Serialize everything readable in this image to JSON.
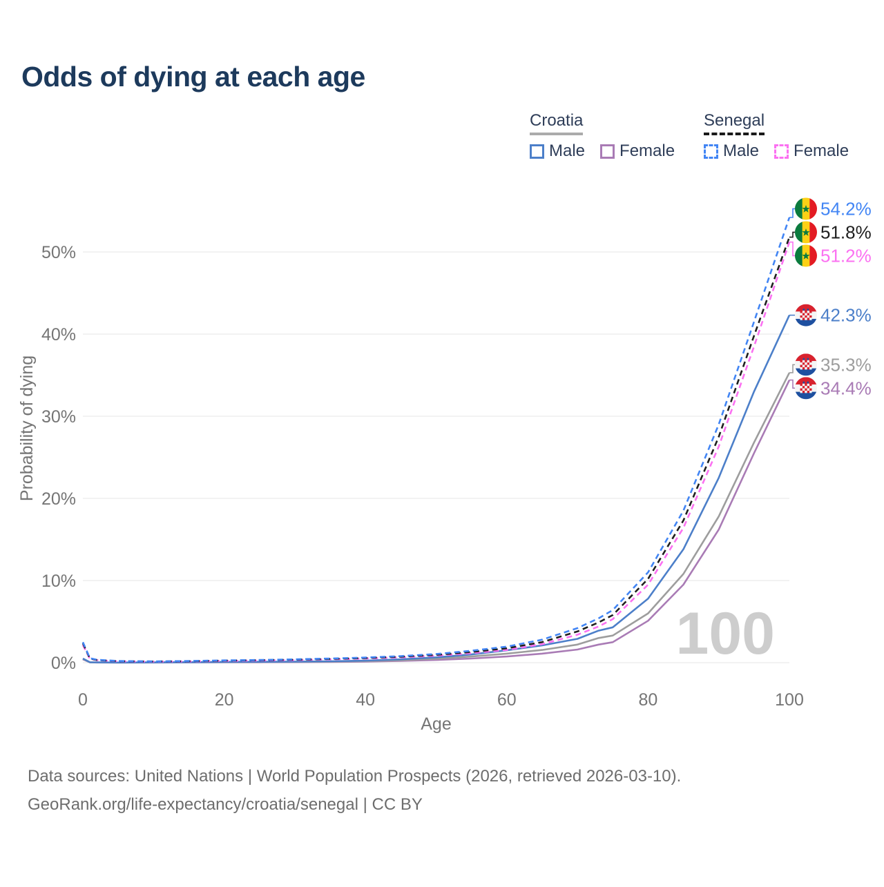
{
  "title": "Odds of dying at each age",
  "legend": {
    "groups": [
      {
        "country": "Croatia",
        "line_style": "solid",
        "underline_color": "#ababab",
        "items": [
          {
            "label": "Male",
            "color": "#4c7fc9",
            "dash": false
          },
          {
            "label": "Female",
            "color": "#a97bb5",
            "dash": false
          }
        ]
      },
      {
        "country": "Senegal",
        "line_style": "dashed",
        "underline_color": "#1a1a1a",
        "items": [
          {
            "label": "Male",
            "color": "#4285f4",
            "dash": true
          },
          {
            "label": "Female",
            "color": "#fb71f1",
            "dash": true
          }
        ]
      }
    ]
  },
  "chart_data": {
    "type": "line",
    "title": "Odds of dying at each age",
    "xlabel": "Age",
    "ylabel": "Probability of dying",
    "xlim": [
      0,
      100
    ],
    "ylim": [
      0,
      55
    ],
    "x_ticks": [
      0,
      20,
      40,
      60,
      80,
      100
    ],
    "y_ticks": [
      "0%",
      "10%",
      "20%",
      "30%",
      "40%",
      "50%"
    ],
    "grid": "horizontal",
    "legend_position": "top-right",
    "watermark": "100",
    "x": [
      0,
      1,
      2,
      5,
      10,
      15,
      20,
      25,
      30,
      35,
      40,
      45,
      50,
      55,
      60,
      65,
      70,
      73,
      75,
      80,
      85,
      90,
      95,
      100
    ],
    "series": [
      {
        "name": "croatia-female",
        "country": "Croatia",
        "sex": "Female",
        "color": "#a97bb5",
        "dash": false,
        "flag": "croatia",
        "end_label": "34.4%",
        "values": [
          0.4,
          0.04,
          0.02,
          0.015,
          0.02,
          0.03,
          0.04,
          0.05,
          0.07,
          0.09,
          0.13,
          0.21,
          0.33,
          0.5,
          0.75,
          1.1,
          1.6,
          2.2,
          2.5,
          5.1,
          9.5,
          16.2,
          25.5,
          34.4
        ]
      },
      {
        "name": "croatia-all",
        "country": "Croatia",
        "sex": "All",
        "color": "#9d9d9d",
        "dash": false,
        "flag": "croatia",
        "end_label": "35.3%",
        "values": [
          0.45,
          0.04,
          0.025,
          0.02,
          0.025,
          0.05,
          0.07,
          0.08,
          0.1,
          0.13,
          0.19,
          0.3,
          0.48,
          0.75,
          1.1,
          1.55,
          2.2,
          3.0,
          3.3,
          6.0,
          10.8,
          17.8,
          26.8,
          35.3
        ]
      },
      {
        "name": "croatia-male",
        "country": "Croatia",
        "sex": "Male",
        "color": "#4c7fc9",
        "dash": false,
        "flag": "croatia",
        "end_label": "42.3%",
        "values": [
          0.5,
          0.05,
          0.03,
          0.02,
          0.03,
          0.06,
          0.09,
          0.11,
          0.13,
          0.17,
          0.25,
          0.4,
          0.65,
          1.0,
          1.5,
          2.1,
          2.9,
          3.9,
          4.3,
          7.8,
          13.8,
          22.5,
          33.0,
          42.3
        ]
      },
      {
        "name": "senegal-female",
        "country": "Senegal",
        "sex": "Female",
        "color": "#fb71f1",
        "dash": true,
        "flag": "senegal",
        "end_label": "51.2%",
        "values": [
          2.15,
          0.45,
          0.3,
          0.16,
          0.12,
          0.15,
          0.21,
          0.26,
          0.31,
          0.4,
          0.5,
          0.65,
          0.85,
          1.15,
          1.55,
          2.25,
          3.4,
          4.4,
          5.3,
          9.5,
          16.4,
          26.3,
          38.5,
          51.2
        ]
      },
      {
        "name": "senegal-all",
        "country": "Senegal",
        "sex": "All",
        "color": "#1f1f1f",
        "dash": true,
        "flag": "senegal",
        "end_label": "51.8%",
        "values": [
          2.35,
          0.5,
          0.32,
          0.18,
          0.14,
          0.18,
          0.25,
          0.3,
          0.36,
          0.45,
          0.56,
          0.72,
          0.95,
          1.3,
          1.75,
          2.5,
          3.8,
          4.9,
          5.8,
          10.2,
          17.3,
          27.5,
          39.8,
          51.8
        ]
      },
      {
        "name": "senegal-male",
        "country": "Senegal",
        "sex": "Male",
        "color": "#4285f4",
        "dash": true,
        "flag": "senegal",
        "end_label": "54.2%",
        "values": [
          2.5,
          0.55,
          0.35,
          0.2,
          0.15,
          0.2,
          0.28,
          0.33,
          0.4,
          0.5,
          0.62,
          0.8,
          1.05,
          1.45,
          1.95,
          2.8,
          4.2,
          5.4,
          6.4,
          11.0,
          18.5,
          29.0,
          41.5,
          54.2
        ]
      }
    ],
    "colors": {
      "grid": "#e9e9e9",
      "tick_text": "#757575",
      "watermark": "#cdcdcd"
    }
  },
  "footer": {
    "lines": [
      "Data sources: United Nations | World Population Prospects (2026, retrieved 2026-03-10).",
      "GeoRank.org/life-expectancy/croatia/senegal | CC BY"
    ]
  }
}
